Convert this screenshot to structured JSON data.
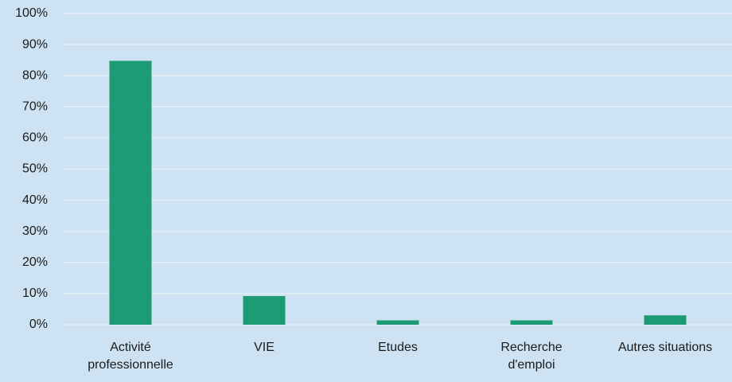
{
  "chart_data": {
    "type": "bar",
    "categories": [
      "Activité professionnelle",
      "VIE",
      "Etudes",
      "Recherche d'emploi",
      "Autres situations"
    ],
    "values": [
      84.8,
      9.2,
      1.4,
      1.4,
      3.0
    ],
    "color": "#1d9b74",
    "ylim": [
      0,
      100
    ],
    "yticks": [
      {
        "value": 0,
        "label": "0%"
      },
      {
        "value": 10,
        "label": "10%"
      },
      {
        "value": 20,
        "label": "20%"
      },
      {
        "value": 30,
        "label": "30%"
      },
      {
        "value": 40,
        "label": "40%"
      },
      {
        "value": 50,
        "label": "50%"
      },
      {
        "value": 60,
        "label": "60%"
      },
      {
        "value": 70,
        "label": "70%"
      },
      {
        "value": 80,
        "label": "80%"
      },
      {
        "value": 90,
        "label": "90%"
      },
      {
        "value": 100,
        "label": "100%"
      }
    ],
    "grid": true
  }
}
